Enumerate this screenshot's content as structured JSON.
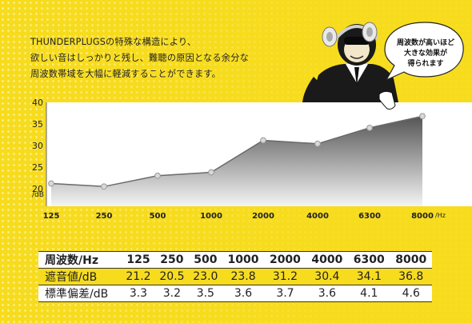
{
  "intro_lines": [
    "THUNDERPLUGSの特殊な構造により、",
    "欲しい音はしっかりと残し、難聴の原因となる余分な",
    "周波数帯域を大幅に軽減することができます。"
  ],
  "bubble_lines": [
    "周波数が高いほど",
    "大きな効果が",
    "得られます"
  ],
  "colors": {
    "background": "#f7dc1e",
    "fill_top": "#5a5a5a",
    "fill_bottom": "#f2f2f2",
    "line": "#6a6a6a",
    "marker": "#d8d8d8"
  },
  "chart_data": {
    "type": "area",
    "categories": [
      "125",
      "250",
      "500",
      "1000",
      "2000",
      "4000",
      "6300",
      "8000"
    ],
    "values": [
      21.2,
      20.5,
      23.0,
      23.8,
      31.2,
      30.4,
      34.1,
      36.8
    ],
    "x_unit": "/Hz",
    "y_unit": "/dB",
    "y_ticks": [
      "20",
      "25",
      "30",
      "35",
      "40"
    ],
    "ylim": [
      20,
      40
    ],
    "grid": false,
    "legend": "none"
  },
  "table": {
    "header_label": "周波数/Hz",
    "header": [
      "125",
      "250",
      "500",
      "1000",
      "2000",
      "4000",
      "6300",
      "8000"
    ],
    "rows": [
      {
        "label": "遮音値/dB",
        "values": [
          "21.2",
          "20.5",
          "23.0",
          "23.8",
          "31.2",
          "30.4",
          "34.1",
          "36.8"
        ]
      },
      {
        "label": "標準偏差/dB",
        "values": [
          "3.3",
          "3.2",
          "3.5",
          "3.6",
          "3.7",
          "3.6",
          "4.1",
          "4.6"
        ]
      }
    ]
  },
  "mascot_icon": "monkey-in-suit-with-headphones-illustration"
}
